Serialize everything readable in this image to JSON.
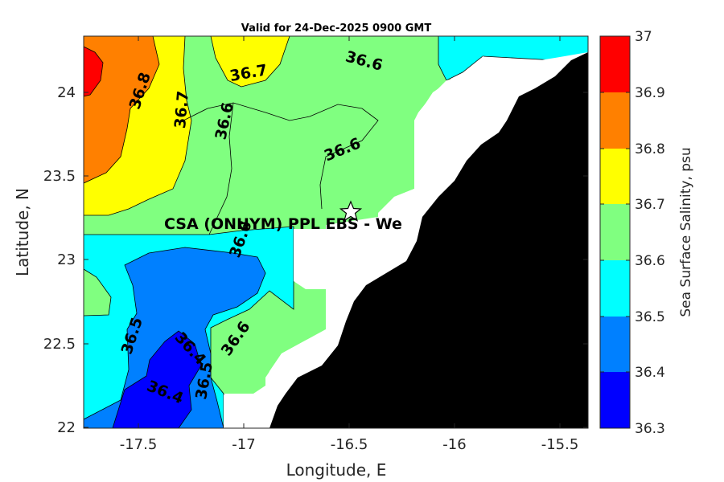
{
  "title": "Valid for 24-Dec-2025 0900 GMT",
  "axes": {
    "xlabel": "Longitude, E",
    "ylabel": "Latitude, N",
    "x_ticks": [
      "-17.5",
      "-17",
      "-16.5",
      "-16",
      "-15.5"
    ],
    "y_ticks": [
      "24",
      "23.5",
      "23",
      "22.5",
      "22"
    ]
  },
  "site": {
    "label": "CSA (ONHYM) PPL EBS  - We",
    "marker": "star-icon"
  },
  "contour_labels": [
    "36.8",
    "36.7",
    "36.7",
    "36.6",
    "36.6",
    "36.6",
    "36.6",
    "36.5",
    "36.4",
    "36.5",
    "36.4",
    "36.6"
  ],
  "colorbar": {
    "label": "Sea Surface Salinity, psu",
    "ticks": [
      "37",
      "36.9",
      "36.8",
      "36.7",
      "36.6",
      "36.5",
      "36.4",
      "36.3"
    ],
    "colors": [
      "#ff0000",
      "#ff8000",
      "#ffff00",
      "#80ff80",
      "#00ffff",
      "#0080ff",
      "#0000ff"
    ]
  },
  "chart_data": {
    "type": "heatmap",
    "title": "Valid for 24-Dec-2025 0900 GMT",
    "xlabel": "Longitude, E",
    "ylabel": "Latitude, N",
    "xlim": [
      -17.8,
      -15.35
    ],
    "ylim": [
      22.0,
      24.33
    ],
    "x_ticks": [
      -17.5,
      -17,
      -16.5,
      -16,
      -15.5
    ],
    "y_ticks": [
      22,
      22.5,
      23,
      23.5,
      24
    ],
    "variable": "Sea Surface Salinity",
    "units": "psu",
    "levels": [
      36.3,
      36.4,
      36.5,
      36.6,
      36.7,
      36.8,
      36.9,
      37.0
    ],
    "contour_labels": [
      36.8,
      36.7,
      36.7,
      36.6,
      36.6,
      36.6,
      36.6,
      36.5,
      36.4,
      36.5,
      36.4,
      36.6
    ],
    "site": {
      "lon": -16.49,
      "lat": 23.29
    }
  }
}
